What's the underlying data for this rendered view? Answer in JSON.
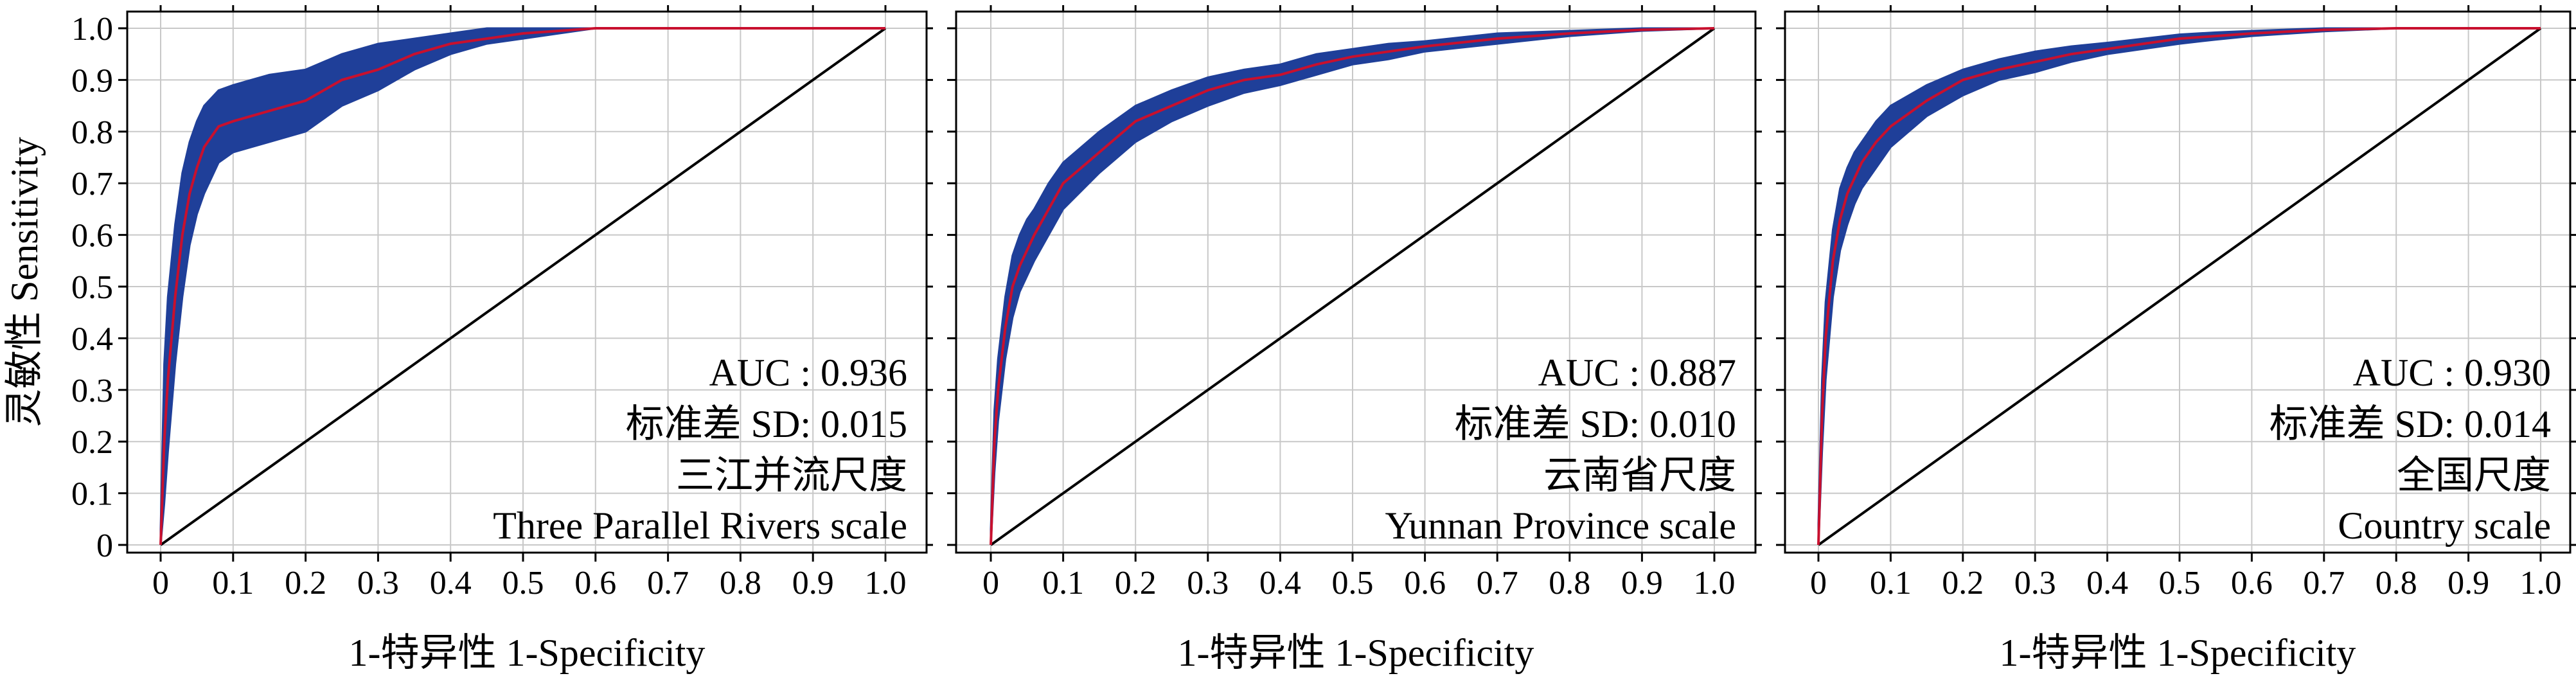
{
  "chart_data": [
    {
      "type": "line",
      "xlabel": "1-特异性 1-Specificity",
      "ylabel": "灵敏性 Sensitivity",
      "xlim": [
        0,
        1
      ],
      "ylim": [
        0,
        1
      ],
      "xticks": [
        "0",
        "0.1",
        "0.2",
        "0.3",
        "0.4",
        "0.5",
        "0.6",
        "0.7",
        "0.8",
        "0.9",
        "1.0"
      ],
      "yticks": [
        "0",
        "0.1",
        "0.2",
        "0.3",
        "0.4",
        "0.5",
        "0.6",
        "0.7",
        "0.8",
        "0.9",
        "1.0"
      ],
      "grid": true,
      "annotations": [
        "AUC : 0.936",
        "标准差 SD: 0.015",
        "三江并流尺度",
        "Three Parallel Rivers scale"
      ],
      "series": [
        {
          "role": "mean-roc",
          "color": "#c8102e",
          "x": [
            0,
            0.005,
            0.01,
            0.02,
            0.03,
            0.04,
            0.05,
            0.06,
            0.08,
            0.1,
            0.15,
            0.2,
            0.25,
            0.3,
            0.35,
            0.4,
            0.45,
            0.5,
            0.55,
            0.6,
            0.7,
            0.8,
            0.9,
            1.0
          ],
          "y": [
            0,
            0.2,
            0.32,
            0.48,
            0.6,
            0.68,
            0.73,
            0.77,
            0.81,
            0.82,
            0.84,
            0.86,
            0.9,
            0.92,
            0.95,
            0.97,
            0.98,
            0.99,
            0.995,
            1.0,
            1.0,
            1.0,
            1.0,
            1.0
          ]
        },
        {
          "role": "sd-band",
          "color": "#1f3f99",
          "x": [
            0,
            0.005,
            0.01,
            0.02,
            0.03,
            0.04,
            0.05,
            0.06,
            0.08,
            0.1,
            0.15,
            0.2,
            0.25,
            0.3,
            0.35,
            0.4,
            0.45,
            0.5,
            0.55,
            0.6,
            0.7,
            0.8,
            0.9,
            1.0
          ],
          "lower": [
            0,
            0.08,
            0.18,
            0.35,
            0.48,
            0.58,
            0.64,
            0.68,
            0.74,
            0.76,
            0.78,
            0.8,
            0.85,
            0.88,
            0.92,
            0.95,
            0.97,
            0.98,
            0.99,
            1.0,
            1.0,
            1.0,
            1.0,
            1.0
          ],
          "upper": [
            0.03,
            0.35,
            0.48,
            0.62,
            0.72,
            0.78,
            0.82,
            0.85,
            0.88,
            0.89,
            0.91,
            0.92,
            0.95,
            0.97,
            0.98,
            0.99,
            1.0,
            1.0,
            1.0,
            1.0,
            1.0,
            1.0,
            1.0,
            1.0
          ]
        },
        {
          "role": "reference",
          "color": "#000000",
          "x": [
            0,
            1
          ],
          "y": [
            0,
            1
          ]
        }
      ]
    },
    {
      "type": "line",
      "xlabel": "1-特异性 1-Specificity",
      "ylabel": "",
      "xlim": [
        0,
        1
      ],
      "ylim": [
        0,
        1
      ],
      "xticks": [
        "0",
        "0.1",
        "0.2",
        "0.3",
        "0.4",
        "0.5",
        "0.6",
        "0.7",
        "0.8",
        "0.9",
        "1.0"
      ],
      "yticks": [],
      "grid": true,
      "annotations": [
        "AUC : 0.887",
        "标准差 SD: 0.010",
        "云南省尺度",
        "Yunnan Province scale"
      ],
      "series": [
        {
          "role": "mean-roc",
          "color": "#c8102e",
          "x": [
            0,
            0.005,
            0.01,
            0.02,
            0.03,
            0.04,
            0.05,
            0.06,
            0.08,
            0.1,
            0.15,
            0.2,
            0.25,
            0.3,
            0.35,
            0.4,
            0.45,
            0.5,
            0.55,
            0.6,
            0.7,
            0.8,
            0.9,
            1.0
          ],
          "y": [
            0,
            0.2,
            0.3,
            0.42,
            0.5,
            0.54,
            0.57,
            0.6,
            0.65,
            0.7,
            0.76,
            0.82,
            0.85,
            0.88,
            0.9,
            0.91,
            0.93,
            0.945,
            0.955,
            0.965,
            0.98,
            0.99,
            0.997,
            1.0
          ]
        },
        {
          "role": "sd-band",
          "color": "#1f3f99",
          "x": [
            0,
            0.005,
            0.01,
            0.02,
            0.03,
            0.04,
            0.05,
            0.06,
            0.08,
            0.1,
            0.15,
            0.2,
            0.25,
            0.3,
            0.35,
            0.4,
            0.45,
            0.5,
            0.55,
            0.6,
            0.7,
            0.8,
            0.9,
            1.0
          ],
          "lower": [
            0,
            0.14,
            0.24,
            0.36,
            0.44,
            0.49,
            0.52,
            0.55,
            0.6,
            0.65,
            0.72,
            0.78,
            0.82,
            0.85,
            0.875,
            0.89,
            0.91,
            0.93,
            0.94,
            0.955,
            0.97,
            0.985,
            0.995,
            1.0
          ],
          "upper": [
            0.03,
            0.26,
            0.36,
            0.48,
            0.56,
            0.6,
            0.63,
            0.65,
            0.7,
            0.74,
            0.8,
            0.85,
            0.88,
            0.905,
            0.92,
            0.93,
            0.95,
            0.96,
            0.97,
            0.975,
            0.99,
            0.995,
            1.0,
            1.0
          ]
        },
        {
          "role": "reference",
          "color": "#000000",
          "x": [
            0,
            1
          ],
          "y": [
            0,
            1
          ]
        }
      ]
    },
    {
      "type": "line",
      "xlabel": "1-特异性 1-Specificity",
      "ylabel": "",
      "xlim": [
        0,
        1
      ],
      "ylim": [
        0,
        1
      ],
      "xticks": [
        "0",
        "0.1",
        "0.2",
        "0.3",
        "0.4",
        "0.5",
        "0.6",
        "0.7",
        "0.8",
        "0.9",
        "1.0"
      ],
      "yticks": [],
      "grid": true,
      "annotations": [
        "AUC : 0.930",
        "标准差 SD: 0.014",
        "全国尺度",
        "Country scale"
      ],
      "series": [
        {
          "role": "mean-roc",
          "color": "#c8102e",
          "x": [
            0,
            0.005,
            0.01,
            0.02,
            0.03,
            0.04,
            0.05,
            0.06,
            0.08,
            0.1,
            0.15,
            0.2,
            0.25,
            0.3,
            0.35,
            0.4,
            0.45,
            0.5,
            0.55,
            0.6,
            0.7,
            0.8,
            0.9,
            1.0
          ],
          "y": [
            0,
            0.25,
            0.4,
            0.55,
            0.63,
            0.68,
            0.71,
            0.74,
            0.78,
            0.81,
            0.86,
            0.9,
            0.92,
            0.935,
            0.95,
            0.96,
            0.97,
            0.98,
            0.985,
            0.99,
            0.997,
            1.0,
            1.0,
            1.0
          ]
        },
        {
          "role": "sd-band",
          "color": "#1f3f99",
          "x": [
            0,
            0.005,
            0.01,
            0.02,
            0.03,
            0.04,
            0.05,
            0.06,
            0.08,
            0.1,
            0.15,
            0.2,
            0.25,
            0.3,
            0.35,
            0.4,
            0.45,
            0.5,
            0.55,
            0.6,
            0.7,
            0.8,
            0.9,
            1.0
          ],
          "lower": [
            0,
            0.18,
            0.32,
            0.48,
            0.57,
            0.62,
            0.66,
            0.69,
            0.73,
            0.77,
            0.83,
            0.87,
            0.9,
            0.915,
            0.935,
            0.95,
            0.96,
            0.97,
            0.978,
            0.985,
            0.994,
            1.0,
            1.0,
            1.0
          ],
          "upper": [
            0.04,
            0.32,
            0.47,
            0.61,
            0.69,
            0.73,
            0.76,
            0.78,
            0.82,
            0.85,
            0.89,
            0.92,
            0.94,
            0.955,
            0.965,
            0.972,
            0.98,
            0.988,
            0.992,
            0.995,
            1.0,
            1.0,
            1.0,
            1.0
          ]
        },
        {
          "role": "reference",
          "color": "#000000",
          "x": [
            0,
            1
          ],
          "y": [
            0,
            1
          ]
        }
      ]
    }
  ]
}
